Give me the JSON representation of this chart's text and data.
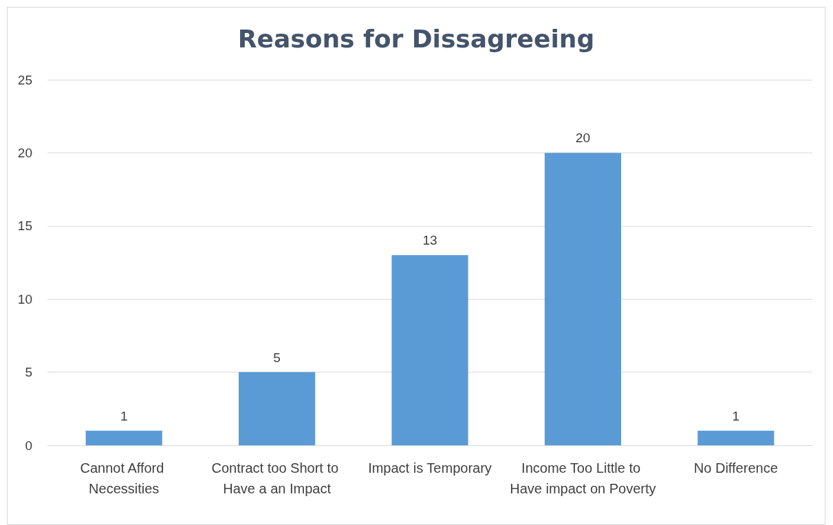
{
  "chart_data": {
    "type": "bar",
    "title": "Reasons for Dissagreeing",
    "categories": [
      "Cannot Afford Necessities",
      "Contract too Short to Have a an Impact",
      "Impact is Temporary",
      "Income Too Little to Have impact on Poverty",
      "No Difference"
    ],
    "values": [
      1,
      5,
      13,
      20,
      1
    ],
    "color": "#5b9bd5",
    "ylim": [
      0,
      25
    ],
    "yticks": [
      0,
      5,
      10,
      15,
      20,
      25
    ],
    "grid": "y",
    "data_labels": true
  }
}
